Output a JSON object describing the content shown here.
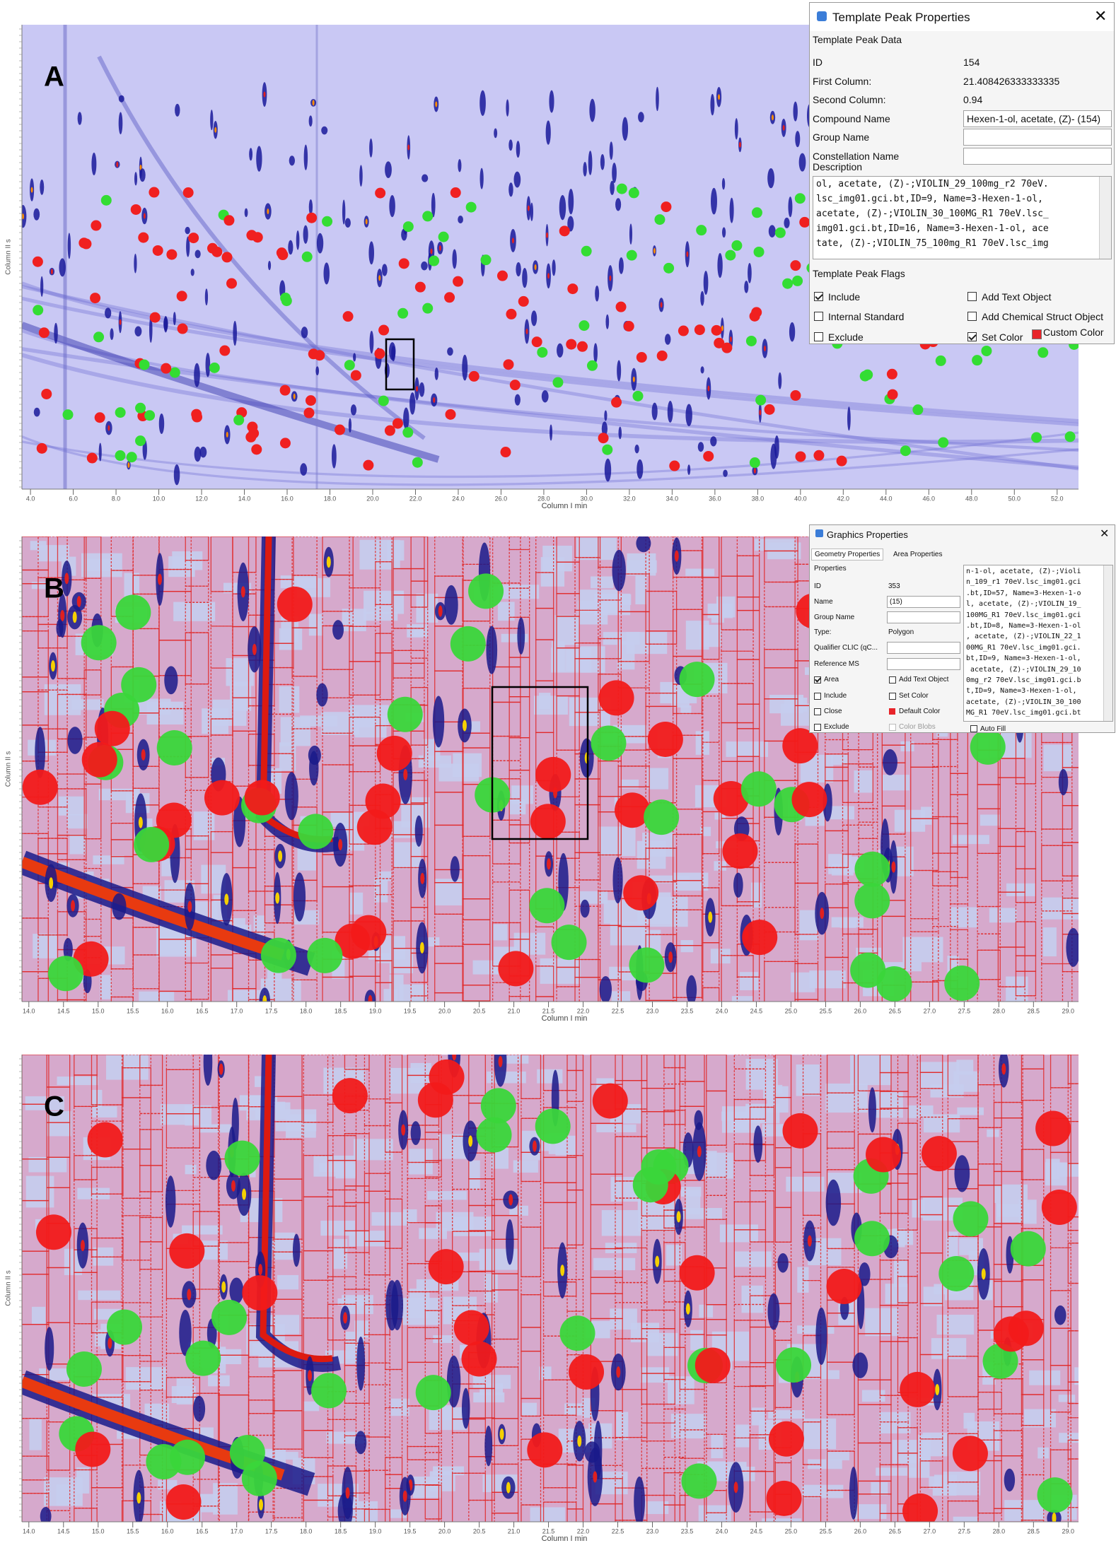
{
  "panels": [
    {
      "label": "A",
      "x_axis_label": "Column I min",
      "y_axis_label": "Column II s",
      "xlim": [
        3.6,
        53.0
      ],
      "xticks": [
        {
          "value": 4,
          "label": "4.0"
        },
        {
          "value": 6,
          "label": "6.0"
        },
        {
          "value": 8,
          "label": "8.0"
        },
        {
          "value": 10,
          "label": "10.0"
        },
        {
          "value": 12,
          "label": "12.0"
        },
        {
          "value": 14,
          "label": "14.0"
        },
        {
          "value": 16,
          "label": "16.0"
        },
        {
          "value": 18,
          "label": "18.0"
        },
        {
          "value": 20,
          "label": "20.0"
        },
        {
          "value": 22,
          "label": "22.0"
        },
        {
          "value": 24,
          "label": "24.0"
        },
        {
          "value": 26,
          "label": "26.0"
        },
        {
          "value": 28,
          "label": "28.0"
        },
        {
          "value": 30,
          "label": "30.0"
        },
        {
          "value": 32,
          "label": "32.0"
        },
        {
          "value": 34,
          "label": "34.0"
        },
        {
          "value": 36,
          "label": "36.0"
        },
        {
          "value": 38,
          "label": "38.0"
        },
        {
          "value": 40,
          "label": "40.0"
        },
        {
          "value": 42,
          "label": "42.0"
        },
        {
          "value": 44,
          "label": "44.0"
        },
        {
          "value": 46,
          "label": "46.0"
        },
        {
          "value": 48,
          "label": "48.0"
        },
        {
          "value": 50,
          "label": "50.0"
        },
        {
          "value": 52,
          "label": "52.0"
        }
      ]
    },
    {
      "label": "B",
      "x_axis_label": "Column I min",
      "y_axis_label": "Column II s",
      "xlim": [
        13.9,
        29.15
      ],
      "xticks": [
        {
          "value": 14,
          "label": "14.0"
        },
        {
          "value": 14.5,
          "label": "14.5"
        },
        {
          "value": 15,
          "label": "15.0"
        },
        {
          "value": 15.5,
          "label": "15.5"
        },
        {
          "value": 16,
          "label": "16.0"
        },
        {
          "value": 16.5,
          "label": "16.5"
        },
        {
          "value": 17,
          "label": "17.0"
        },
        {
          "value": 17.5,
          "label": "17.5"
        },
        {
          "value": 18,
          "label": "18.0"
        },
        {
          "value": 18.5,
          "label": "18.5"
        },
        {
          "value": 19,
          "label": "19.0"
        },
        {
          "value": 19.5,
          "label": "19.5"
        },
        {
          "value": 20,
          "label": "20.0"
        },
        {
          "value": 20.5,
          "label": "20.5"
        },
        {
          "value": 21,
          "label": "21.0"
        },
        {
          "value": 21.5,
          "label": "21.5"
        },
        {
          "value": 22,
          "label": "22.0"
        },
        {
          "value": 22.5,
          "label": "22.5"
        },
        {
          "value": 23,
          "label": "23.0"
        },
        {
          "value": 23.5,
          "label": "23.5"
        },
        {
          "value": 24,
          "label": "24.0"
        },
        {
          "value": 24.5,
          "label": "24.5"
        },
        {
          "value": 25,
          "label": "25.0"
        },
        {
          "value": 25.5,
          "label": "25.5"
        },
        {
          "value": 26,
          "label": "26.0"
        },
        {
          "value": 26.5,
          "label": "26.5"
        },
        {
          "value": 27,
          "label": "27.0"
        },
        {
          "value": 27.5,
          "label": "27.5"
        },
        {
          "value": 28,
          "label": "28.0"
        },
        {
          "value": 28.5,
          "label": "28.5"
        },
        {
          "value": 29,
          "label": "29.0"
        }
      ]
    },
    {
      "label": "C",
      "x_axis_label": "Column I min",
      "y_axis_label": "Column II s",
      "xlim": [
        13.9,
        29.15
      ],
      "xticks": [
        {
          "value": 14,
          "label": "14.0"
        },
        {
          "value": 14.5,
          "label": "14.5"
        },
        {
          "value": 15,
          "label": "15.0"
        },
        {
          "value": 15.5,
          "label": "15.5"
        },
        {
          "value": 16,
          "label": "16.0"
        },
        {
          "value": 16.5,
          "label": "16.5"
        },
        {
          "value": 17,
          "label": "17.0"
        },
        {
          "value": 17.5,
          "label": "17.5"
        },
        {
          "value": 18,
          "label": "18.0"
        },
        {
          "value": 18.5,
          "label": "18.5"
        },
        {
          "value": 19,
          "label": "19.0"
        },
        {
          "value": 19.5,
          "label": "19.5"
        },
        {
          "value": 20,
          "label": "20.0"
        },
        {
          "value": 20.5,
          "label": "20.5"
        },
        {
          "value": 21,
          "label": "21.0"
        },
        {
          "value": 21.5,
          "label": "21.5"
        },
        {
          "value": 22,
          "label": "22.0"
        },
        {
          "value": 22.5,
          "label": "22.5"
        },
        {
          "value": 23,
          "label": "23.0"
        },
        {
          "value": 23.5,
          "label": "23.5"
        },
        {
          "value": 24,
          "label": "24.0"
        },
        {
          "value": 24.5,
          "label": "24.5"
        },
        {
          "value": 25,
          "label": "25.0"
        },
        {
          "value": 25.5,
          "label": "25.5"
        },
        {
          "value": 26,
          "label": "26.0"
        },
        {
          "value": 26.5,
          "label": "26.5"
        },
        {
          "value": 27,
          "label": "27.0"
        },
        {
          "value": 27.5,
          "label": "27.5"
        },
        {
          "value": 28,
          "label": "28.0"
        },
        {
          "value": 28.5,
          "label": "28.5"
        },
        {
          "value": 29,
          "label": "29.0"
        }
      ]
    }
  ],
  "template_dialog": {
    "title": "Template Peak Properties",
    "data_group": "Template Peak Data",
    "fields": [
      {
        "label": "ID",
        "value": "154"
      },
      {
        "label": "First Column:",
        "value": "21.408426333333335"
      },
      {
        "label": "Second Column:",
        "value": "0.94"
      },
      {
        "label": "Compound Name",
        "value": "Hexen-1-ol, acetate, (Z)- (154)"
      }
    ],
    "empty_fields": [
      "Group Name",
      "Constellation Name"
    ],
    "description_label": "Description",
    "description": [
      "ol, acetate, (Z)-;VIOLIN_29_100mg_r2 70eV.",
      "lsc_img01.gci.bt,ID=9, Name=3-Hexen-1-ol,",
      "acetate, (Z)-;VIOLIN_30_100MG_R1 70eV.lsc_",
      "img01.gci.bt,ID=16, Name=3-Hexen-1-ol, ace",
      "tate, (Z)-;VIOLIN_75_100mg_R1 70eV.lsc_img"
    ],
    "flags_group": "Template Peak Flags",
    "flags": [
      "Include",
      "Add Text Object",
      "Internal Standard",
      "Add Chemical Struct Object",
      "Exclude",
      "Set Color"
    ],
    "custom_color": "Custom Color"
  },
  "graphics_dialog": {
    "title": "Graphics Properties",
    "tabs": [
      "Geometry Properties",
      "Area Properties"
    ],
    "group": "Properties",
    "fields": [
      {
        "label": "ID",
        "value": "353"
      },
      {
        "label": "Name",
        "value": "(15)"
      },
      {
        "label": "Group Name"
      },
      {
        "label": "Type:",
        "value": "Polygon"
      },
      {
        "label": "Qualifier CLIC (qC..."
      },
      {
        "label": "Reference MS"
      }
    ],
    "flags": [
      "Area",
      "Add Text Object",
      "Include",
      "Set Color",
      "Close",
      "Default Color",
      "Exclude",
      "Color Blobs"
    ],
    "auto_fill": "Auto Fill",
    "text": [
      "n-1-ol, acetate, (Z)-;Violi",
      "n_109_r1 70eV.lsc_img01.gci",
      ".bt,ID=57, Name=3-Hexen-1-o",
      "l, acetate, (Z)-;VIOLIN_19_",
      "100MG_R1 70eV.lsc_img01.gci",
      ".bt,ID=8, Name=3-Hexen-1-ol",
      ", acetate, (Z)-;VIOLIN_22_1",
      "00MG_R1 70eV.lsc_img01.gci.",
      "bt,ID=9, Name=3-Hexen-1-ol,",
      " acetate, (Z)-;VIOLIN_29_10",
      "0mg_r2 70eV.lsc_img01.gci.b",
      "t,ID=9, Name=3-Hexen-1-ol,",
      "acetate, (Z)-;VIOLIN_30_100",
      "MG_R1 70eV.lsc_img01.gci.bt"
    ]
  }
}
